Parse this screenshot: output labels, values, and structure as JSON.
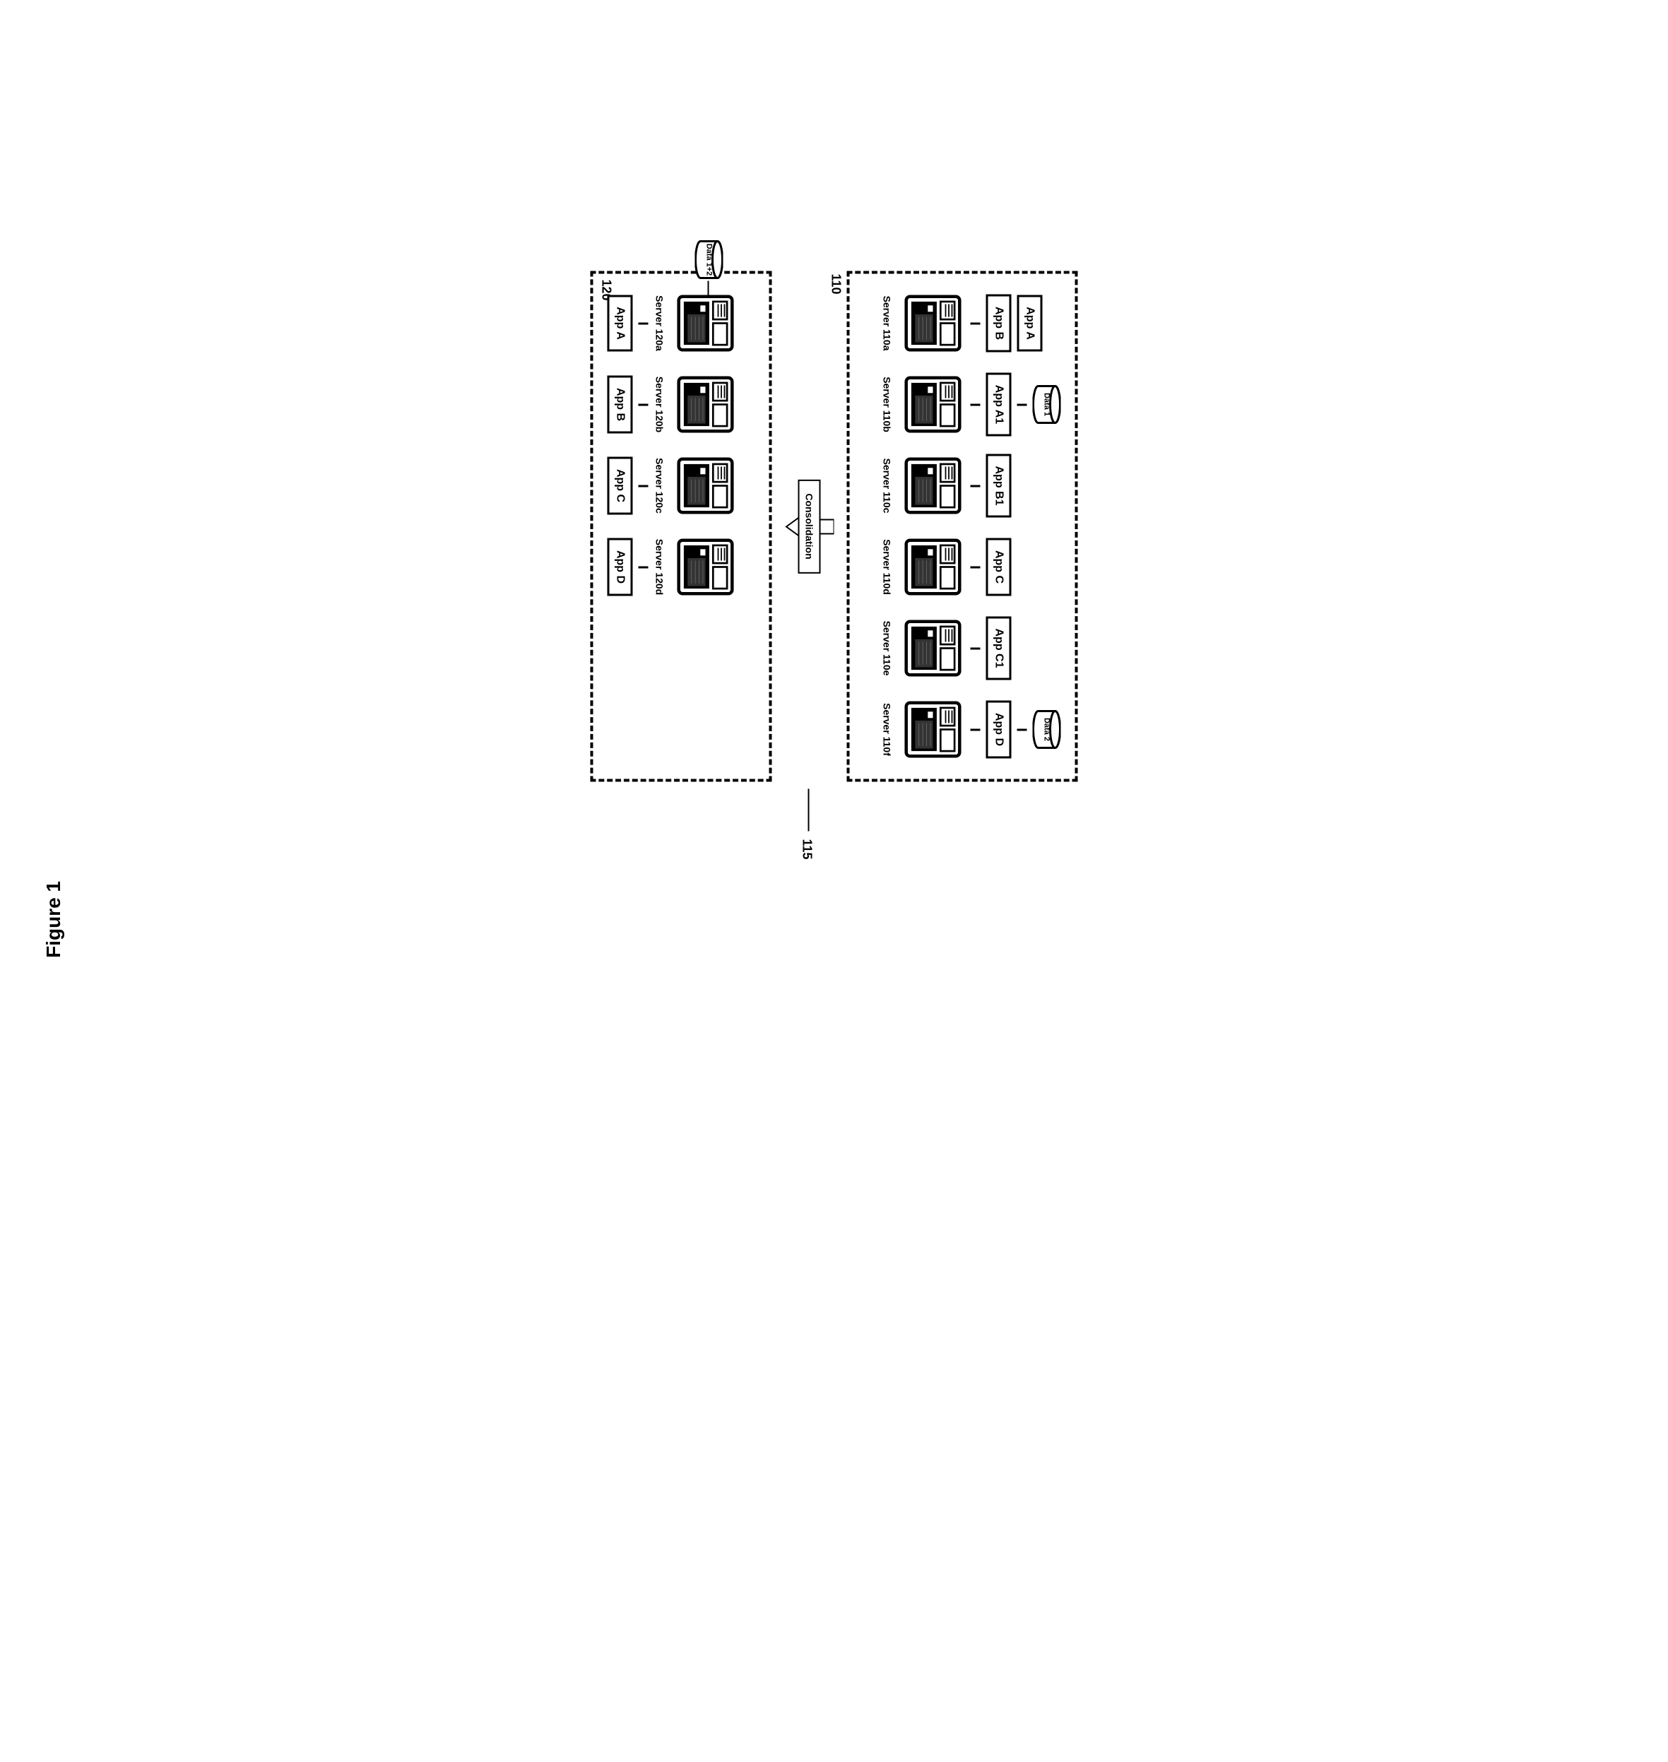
{
  "figure_title": "Figure 1",
  "colors": {
    "line": "#000000",
    "bg": "#ffffff",
    "server_body": "#000000",
    "server_front": "#ffffff"
  },
  "top_group": {
    "tag": "110",
    "columns": [
      {
        "server": "Server 110a",
        "apps": [
          "App A",
          "App B"
        ],
        "data": null
      },
      {
        "server": "Server 110b",
        "apps": [
          "App A1"
        ],
        "data": "Data 1"
      },
      {
        "server": "Server 110c",
        "apps": [
          "App B1"
        ],
        "data": null
      },
      {
        "server": "Server 110d",
        "apps": [
          "App C"
        ],
        "data": null
      },
      {
        "server": "Server 110e",
        "apps": [
          "App C1"
        ],
        "data": null
      },
      {
        "server": "Server 110f",
        "apps": [
          "App D"
        ],
        "data": "Data 2"
      }
    ]
  },
  "consolidation": {
    "label": "Consolidation",
    "callout": "115"
  },
  "bottom_group": {
    "tag": "120",
    "side_data": "Data 1+2",
    "columns": [
      {
        "server": "Server 120a",
        "apps": [
          "App A"
        ]
      },
      {
        "server": "Server 120b",
        "apps": [
          "App B"
        ]
      },
      {
        "server": "Server 120c",
        "apps": [
          "App C"
        ]
      },
      {
        "server": "Server 120d",
        "apps": [
          "App D"
        ]
      }
    ]
  }
}
